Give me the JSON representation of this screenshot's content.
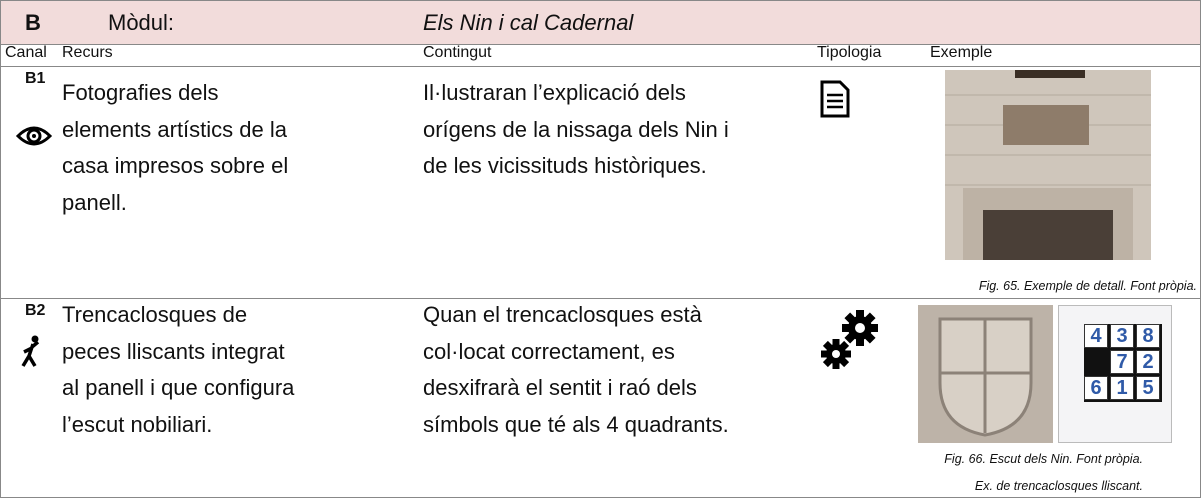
{
  "header": {
    "id": "B",
    "label": "Mòdul:",
    "title": "Els Nin i cal Cadernal"
  },
  "columns": [
    "Canal",
    "Recurs",
    "Contingut",
    "Tipologia",
    "Exemple"
  ],
  "rows": [
    {
      "id": "B1",
      "resource": [
        "Fotografies dels",
        "elements artístics de la",
        "casa impresos sobre el",
        "panell."
      ],
      "content": [
        "Il·lustraran l’explicació dels",
        "orígens de la nissaga dels Nin i",
        "de les vicissituds històriques."
      ],
      "captions": [
        "Fig. 65. Exemple de detall. Font pròpia."
      ]
    },
    {
      "id": "B2",
      "resource": [
        "Trencaclosques de",
        "peces lliscants integrat",
        "al panell i que configura",
        "l’escut nobiliari."
      ],
      "content": [
        "Quan el trencaclosques està",
        "col·locat correctament, es",
        "desxifrarà el sentit i raó dels",
        "símbols que té als 4 quadrants."
      ],
      "captions": [
        "Fig. 66. Escut dels Nin. Font pròpia.",
        "Ex. de trencaclosques lliscant."
      ],
      "puzzle": [
        [
          "4",
          "3",
          "8"
        ],
        [
          null,
          "7",
          "2"
        ],
        [
          "6",
          "1",
          "5"
        ]
      ]
    }
  ]
}
